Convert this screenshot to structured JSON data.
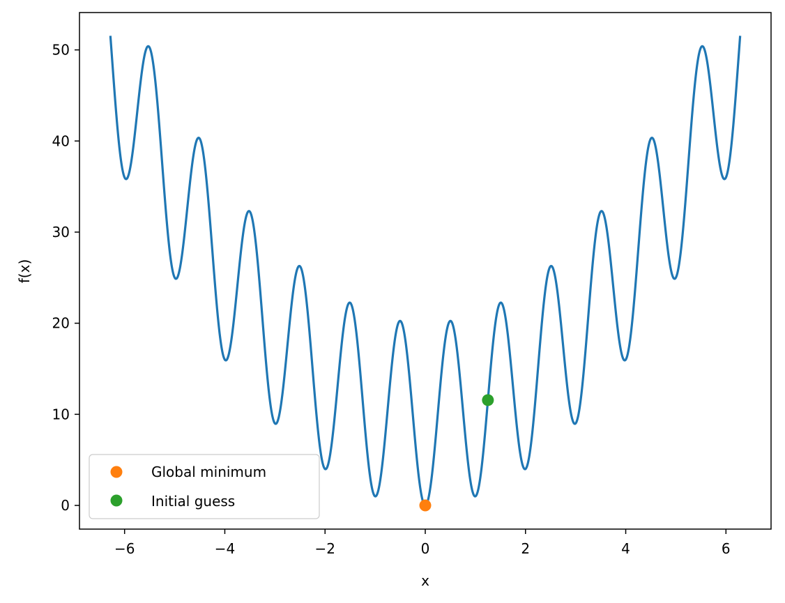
{
  "chart_data": {
    "type": "line",
    "function": "x^2 + 10 - 10*cos(2*pi*x)",
    "xlabel": "x",
    "ylabel": "f(x)",
    "xlim": [
      -6.9,
      6.9
    ],
    "ylim": [
      -2.6,
      54.1
    ],
    "x_range": [
      -6.2832,
      6.2832
    ],
    "xticks": [
      -6,
      -4,
      -2,
      0,
      2,
      4,
      6
    ],
    "xtick_labels": [
      "−6",
      "−4",
      "−2",
      "0",
      "2",
      "4",
      "6"
    ],
    "yticks": [
      0,
      10,
      20,
      30,
      40,
      50
    ],
    "ytick_labels": [
      "0",
      "10",
      "20",
      "30",
      "40",
      "50"
    ],
    "grid": false,
    "legend_position": "lower-left",
    "series": [
      {
        "color": "#1f77b4"
      },
      {
        "name": "Global minimum",
        "type": "scatter",
        "color": "#ff7f0e",
        "x": [
          0
        ],
        "y": [
          0
        ]
      },
      {
        "name": "Initial guess",
        "type": "scatter",
        "color": "#2ca02c",
        "x": [
          1.25
        ],
        "y": [
          11.56
        ]
      }
    ]
  }
}
